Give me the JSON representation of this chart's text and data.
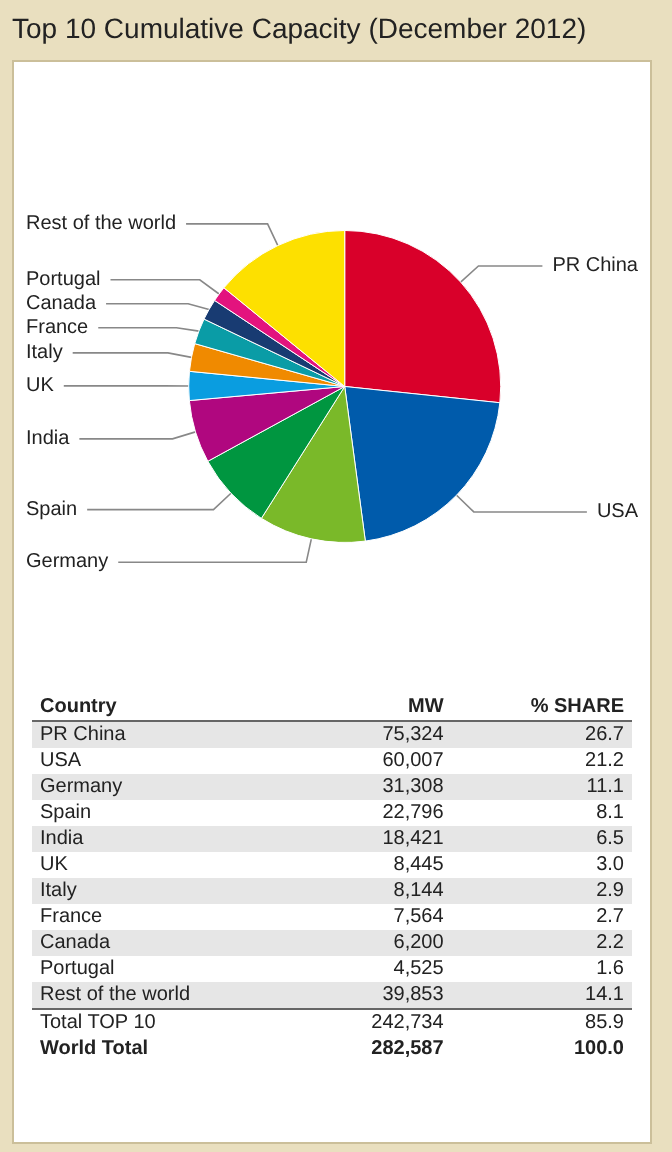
{
  "chart_data": [
    {
      "type": "pie",
      "title": "Top 10 Cumulative Capacity (December 2012)",
      "categories": [
        "PR China",
        "USA",
        "Germany",
        "Spain",
        "India",
        "UK",
        "Italy",
        "France",
        "Canada",
        "Portugal",
        "Rest of the world"
      ],
      "values": [
        26.66,
        21.23,
        11.08,
        8.07,
        6.52,
        2.99,
        2.88,
        2.68,
        2.19,
        1.6,
        14.1
      ],
      "legend": false,
      "colors": [
        "#d9002a",
        "#005bab",
        "#7ab929",
        "#009640",
        "#b0077f",
        "#0a9de0",
        "#f08a00",
        "#0a9ca6",
        "#183b72",
        "#e3137e",
        "#fde000"
      ]
    },
    {
      "type": "other",
      "annotations": [
        "Country",
        "MW",
        "% SHARE",
        "PR China",
        "75,324",
        "26.7",
        "USA",
        "60,007",
        "21.2",
        "Germany",
        "31,308",
        "11.1",
        "Spain",
        "22,796",
        "8.1",
        "India",
        "18,421",
        "6.5",
        "UK",
        "8,445",
        "3.0",
        "Italy",
        "8,144",
        "2.9",
        "France",
        "7,564",
        "2.7",
        "Canada",
        "6,200",
        "2.2",
        "Portugal",
        "4,525",
        "1.6",
        "Rest of the world",
        "39,853",
        "14.1",
        "Total TOP 10",
        "242,734",
        "85.9",
        "World Total",
        "282,587",
        "100.0"
      ]
    }
  ]
}
